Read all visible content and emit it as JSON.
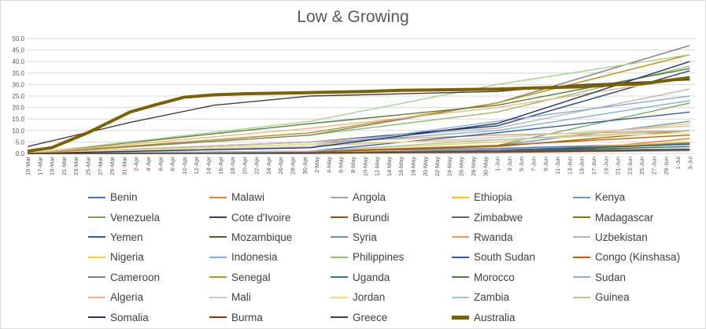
{
  "chart_data": {
    "type": "line",
    "title": "Low & Growing",
    "legend_position": "bottom",
    "gridlines": true,
    "ylim": [
      0,
      50
    ],
    "y_ticks": [
      "0.0",
      "5.0",
      "10.0",
      "15.0",
      "20.0",
      "25.0",
      "30.0",
      "35.0",
      "40.0",
      "45.0",
      "50.0"
    ],
    "x_tick_labels": [
      "15-Mar",
      "17-Mar",
      "19-Mar",
      "21-Mar",
      "23-Mar",
      "25-Mar",
      "27-Mar",
      "29-Mar",
      "31-Mar",
      "2-Apr",
      "4-Apr",
      "6-Apr",
      "8-Apr",
      "10-Apr",
      "12-Apr",
      "14-Apr",
      "16-Apr",
      "18-Apr",
      "20-Apr",
      "22-Apr",
      "24-Apr",
      "26-Apr",
      "28-Apr",
      "30-Apr",
      "2-May",
      "4-May",
      "6-May",
      "8-May",
      "10-May",
      "12-May",
      "14-May",
      "16-May",
      "18-May",
      "20-May",
      "22-May",
      "24-May",
      "26-May",
      "28-May",
      "30-May",
      "1-Jun",
      "3-Jun",
      "5-Jun",
      "7-Jun",
      "9-Jun",
      "11-Jun",
      "13-Jun",
      "15-Jun",
      "17-Jun",
      "19-Jun",
      "21-Jun",
      "23-Jun",
      "25-Jun",
      "27-Jun",
      "29-Jun",
      "1-Jul",
      "3-Jul"
    ],
    "series": [
      {
        "name": "Benin",
        "color": "#4472C4",
        "points": [
          [
            "15-Mar",
            0
          ],
          [
            "1-May",
            1.0
          ],
          [
            "1-Jun",
            2.2
          ],
          [
            "3-Jul",
            4.5
          ]
        ]
      },
      {
        "name": "Malawi",
        "color": "#ED7D31",
        "points": [
          [
            "15-Mar",
            0
          ],
          [
            "1-May",
            0.3
          ],
          [
            "1-Jun",
            0.8
          ],
          [
            "15-Jun",
            2.0
          ],
          [
            "3-Jul",
            6.5
          ]
        ]
      },
      {
        "name": "Angola",
        "color": "#A5A5A5",
        "points": [
          [
            "15-Mar",
            0
          ],
          [
            "1-May",
            0.1
          ],
          [
            "1-Jun",
            0.4
          ],
          [
            "3-Jul",
            1.2
          ]
        ]
      },
      {
        "name": "Ethiopia",
        "color": "#FFC000",
        "points": [
          [
            "15-Mar",
            0
          ],
          [
            "1-May",
            0.2
          ],
          [
            "1-Jun",
            1.0
          ],
          [
            "3-Jul",
            5.0
          ]
        ]
      },
      {
        "name": "Kenya",
        "color": "#5B9BD5",
        "points": [
          [
            "15-Mar",
            0
          ],
          [
            "1-May",
            0.9
          ],
          [
            "1-Jun",
            3.5
          ],
          [
            "3-Jul",
            14.0
          ]
        ]
      },
      {
        "name": "Venezuela",
        "color": "#70AD47",
        "points": [
          [
            "15-Mar",
            0
          ],
          [
            "1-May",
            0.8
          ],
          [
            "1-Jun",
            3.5
          ],
          [
            "3-Jul",
            22.0
          ]
        ]
      },
      {
        "name": "Cote d'Ivoire",
        "color": "#264478",
        "points": [
          [
            "15-Mar",
            0
          ],
          [
            "1-May",
            5.0
          ],
          [
            "1-Jun",
            12.0
          ],
          [
            "3-Jul",
            36.0
          ]
        ]
      },
      {
        "name": "Burundi",
        "color": "#9E480E",
        "points": [
          [
            "15-Mar",
            0
          ],
          [
            "1-May",
            0.1
          ],
          [
            "1-Jun",
            0.5
          ],
          [
            "3-Jul",
            1.5
          ]
        ]
      },
      {
        "name": "Zimbabwe",
        "color": "#636363",
        "points": [
          [
            "15-Mar",
            0
          ],
          [
            "1-May",
            0.3
          ],
          [
            "1-Jun",
            1.5
          ],
          [
            "3-Jul",
            4.0
          ]
        ]
      },
      {
        "name": "Madagascar",
        "color": "#997300",
        "points": [
          [
            "15-Mar",
            0
          ],
          [
            "1-May",
            0.6
          ],
          [
            "1-Jun",
            3.0
          ],
          [
            "3-Jul",
            10.0
          ]
        ]
      },
      {
        "name": "Yemen",
        "color": "#255E91",
        "points": [
          [
            "15-Mar",
            0
          ],
          [
            "1-May",
            0.0
          ],
          [
            "1-Jun",
            1.0
          ],
          [
            "3-Jul",
            4.0
          ]
        ]
      },
      {
        "name": "Mozambique",
        "color": "#43682B",
        "points": [
          [
            "15-Mar",
            0
          ],
          [
            "1-May",
            0.3
          ],
          [
            "1-Jun",
            0.9
          ],
          [
            "3-Jul",
            3.0
          ]
        ]
      },
      {
        "name": "Syria",
        "color": "#698ED0",
        "points": [
          [
            "15-Mar",
            0
          ],
          [
            "1-May",
            0.2
          ],
          [
            "1-Jun",
            0.7
          ],
          [
            "3-Jul",
            2.0
          ]
        ]
      },
      {
        "name": "Rwanda",
        "color": "#F1975A",
        "points": [
          [
            "15-Mar",
            0
          ],
          [
            "1-May",
            5.0
          ],
          [
            "1-Jun",
            8.0
          ],
          [
            "3-Jul",
            10.0
          ]
        ]
      },
      {
        "name": "Uzbekistan",
        "color": "#B7B7B7",
        "points": [
          [
            "15-Mar",
            0
          ],
          [
            "1-May",
            5.0
          ],
          [
            "1-Jun",
            11.0
          ],
          [
            "3-Jul",
            28.0
          ]
        ]
      },
      {
        "name": "Nigeria",
        "color": "#FFCD33",
        "points": [
          [
            "15-Mar",
            0
          ],
          [
            "1-May",
            1.0
          ],
          [
            "1-Jun",
            5.0
          ],
          [
            "3-Jul",
            13.0
          ]
        ]
      },
      {
        "name": "Indonesia",
        "color": "#7CAFDD",
        "points": [
          [
            "15-Mar",
            0
          ],
          [
            "1-May",
            4.0
          ],
          [
            "1-Jun",
            10.0
          ],
          [
            "3-Jul",
            23.0
          ]
        ]
      },
      {
        "name": "Philippines",
        "color": "#8CC168",
        "points": [
          [
            "15-Mar",
            0
          ],
          [
            "1-May",
            8.0
          ],
          [
            "1-Jun",
            18.0
          ],
          [
            "3-Jul",
            38.0
          ]
        ]
      },
      {
        "name": "South Sudan",
        "color": "#335AA1",
        "points": [
          [
            "15-Mar",
            0
          ],
          [
            "1-May",
            1.0
          ],
          [
            "1-Jun",
            9.0
          ],
          [
            "3-Jul",
            18.0
          ]
        ]
      },
      {
        "name": "Congo (Kinshasa)",
        "color": "#C65911",
        "points": [
          [
            "15-Mar",
            0
          ],
          [
            "1-May",
            0.8
          ],
          [
            "1-Jun",
            3.5
          ],
          [
            "3-Jul",
            8.0
          ]
        ]
      },
      {
        "name": "Cameroon",
        "color": "#7F7F7F",
        "points": [
          [
            "15-Mar",
            0
          ],
          [
            "1-May",
            8.0
          ],
          [
            "1-Jun",
            22.0
          ],
          [
            "3-Jul",
            47.0
          ]
        ]
      },
      {
        "name": "Senegal",
        "color": "#BF8F00",
        "points": [
          [
            "15-Mar",
            0
          ],
          [
            "1-May",
            9.0
          ],
          [
            "1-Jun",
            22.0
          ],
          [
            "3-Jul",
            43.0
          ]
        ]
      },
      {
        "name": "Uganda",
        "color": "#2E75B6",
        "points": [
          [
            "15-Mar",
            0
          ],
          [
            "1-May",
            0.2
          ],
          [
            "1-Jun",
            1.0
          ],
          [
            "3-Jul",
            2.0
          ]
        ]
      },
      {
        "name": "Morocco",
        "color": "#548235",
        "points": [
          [
            "15-Mar",
            0
          ],
          [
            "1-May",
            13.0
          ],
          [
            "1-Jun",
            21.0
          ],
          [
            "3-Jul",
            37.0
          ]
        ]
      },
      {
        "name": "Sudan",
        "color": "#8FAADC",
        "points": [
          [
            "15-Mar",
            0
          ],
          [
            "1-May",
            3.0
          ],
          [
            "1-Jun",
            14.0
          ],
          [
            "3-Jul",
            25.0
          ]
        ]
      },
      {
        "name": "Algeria",
        "color": "#F4B183",
        "points": [
          [
            "15-Mar",
            0
          ],
          [
            "1-May",
            11.0
          ],
          [
            "1-Jun",
            20.0
          ],
          [
            "3-Jul",
            33.0
          ]
        ]
      },
      {
        "name": "Mali",
        "color": "#C9C9C9",
        "points": [
          [
            "15-Mar",
            0
          ],
          [
            "1-May",
            3.0
          ],
          [
            "1-Jun",
            7.0
          ],
          [
            "3-Jul",
            12.0
          ]
        ]
      },
      {
        "name": "Jordan",
        "color": "#FFD966",
        "points": [
          [
            "15-Mar",
            0
          ],
          [
            "1-May",
            4.0
          ],
          [
            "1-Jun",
            6.0
          ],
          [
            "3-Jul",
            9.0
          ]
        ]
      },
      {
        "name": "Zambia",
        "color": "#9DC3E6",
        "points": [
          [
            "15-Mar",
            0
          ],
          [
            "1-May",
            1.0
          ],
          [
            "1-Jun",
            6.0
          ],
          [
            "3-Jul",
            10.0
          ]
        ]
      },
      {
        "name": "Guinea",
        "color": "#A9D18E",
        "points": [
          [
            "15-Mar",
            0
          ],
          [
            "1-May",
            14.0
          ],
          [
            "1-Jun",
            30.0
          ],
          [
            "3-Jul",
            43.0
          ]
        ]
      },
      {
        "name": "Somalia",
        "color": "#203864",
        "points": [
          [
            "15-Mar",
            0
          ],
          [
            "1-May",
            2.5
          ],
          [
            "1-Jun",
            13.0
          ],
          [
            "3-Jul",
            40.0
          ]
        ]
      },
      {
        "name": "Burma",
        "color": "#843C0C",
        "points": [
          [
            "15-Mar",
            0
          ],
          [
            "1-May",
            0.2
          ],
          [
            "1-Jun",
            0.8
          ],
          [
            "3-Jul",
            1.5
          ]
        ]
      },
      {
        "name": "Greece",
        "color": "#404040",
        "points": [
          [
            "15-Mar",
            3.0
          ],
          [
            "1-Apr",
            13.5
          ],
          [
            "15-Apr",
            21.0
          ],
          [
            "1-May",
            25.0
          ],
          [
            "1-Jun",
            27.0
          ],
          [
            "15-Jun",
            30.0
          ],
          [
            "3-Jul",
            32.0
          ]
        ]
      },
      {
        "name": "Australia",
        "color": "#7F6000",
        "thick": true,
        "points": [
          [
            "15-Mar",
            1.0
          ],
          [
            "19-Mar",
            2.5
          ],
          [
            "25-Mar",
            9.0
          ],
          [
            "1-Apr",
            18.0
          ],
          [
            "5-Apr",
            21.0
          ],
          [
            "10-Apr",
            24.5
          ],
          [
            "15-Apr",
            25.5
          ],
          [
            "20-Apr",
            26.0
          ],
          [
            "1-May",
            26.5
          ],
          [
            "10-May",
            27.0
          ],
          [
            "16-May",
            27.5
          ],
          [
            "1-Jun",
            28.0
          ],
          [
            "7-Jun",
            28.5
          ],
          [
            "15-Jun",
            29.0
          ],
          [
            "21-Jun",
            30.0
          ],
          [
            "25-Jun",
            30.3
          ],
          [
            "3-Jul",
            33.0
          ]
        ]
      }
    ]
  }
}
